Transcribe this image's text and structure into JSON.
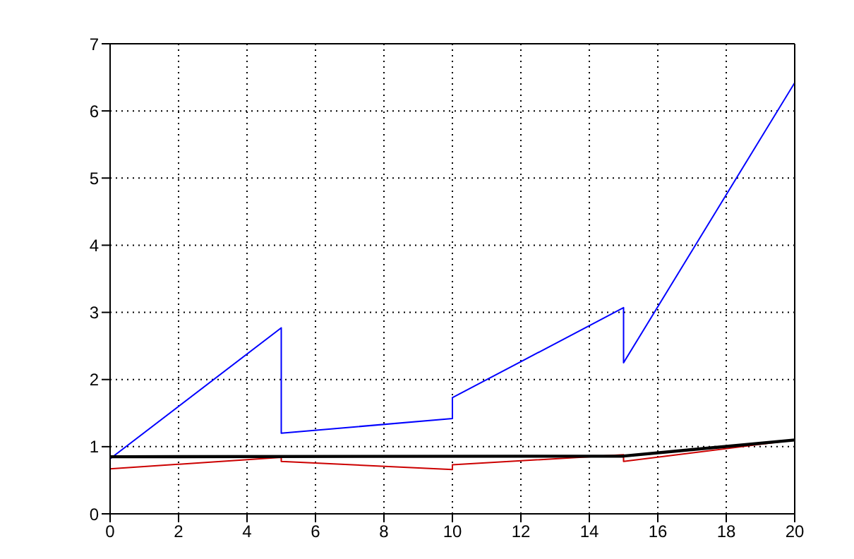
{
  "chart_data": {
    "type": "line",
    "xlim": [
      0,
      20
    ],
    "xticks": [
      0,
      2,
      4,
      6,
      8,
      10,
      12,
      14,
      16,
      18,
      20
    ],
    "ylim": [
      0,
      7
    ],
    "yticks": [
      0,
      1,
      2,
      3,
      4,
      5,
      6,
      7
    ],
    "grid": true,
    "line_style": "solid",
    "marker": "none",
    "series": [
      {
        "color": "#0000ff",
        "x": [
          0,
          5,
          5,
          10,
          10,
          15,
          15,
          20
        ],
        "values": [
          0.82,
          2.77,
          1.2,
          1.42,
          1.73,
          3.07,
          2.25,
          6.42
        ]
      },
      {
        "color": "#cc0000",
        "x": [
          0,
          5,
          5,
          10,
          10,
          15,
          15,
          20
        ],
        "values": [
          0.67,
          0.84,
          0.78,
          0.66,
          0.73,
          0.88,
          0.78,
          1.1
        ]
      },
      {
        "color": "#000000",
        "x": [
          0,
          15,
          20
        ],
        "values": [
          0.85,
          0.86,
          1.1
        ]
      }
    ]
  }
}
